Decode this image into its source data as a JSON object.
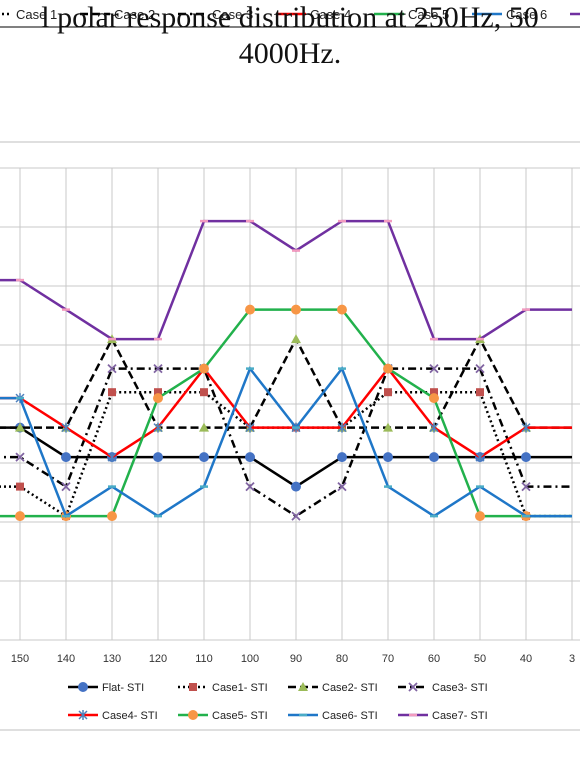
{
  "top_legend": [
    {
      "label": "Case 1",
      "color": "#000000",
      "dash": "2,3"
    },
    {
      "label": "Case 2",
      "color": "#000000",
      "dash": "8,4"
    },
    {
      "label": "Case 3",
      "color": "#000000",
      "dash": "8,4,2,4"
    },
    {
      "label": "Case 4",
      "color": "#ff0000",
      "dash": ""
    },
    {
      "label": "Case 5",
      "color": "#22b14c",
      "dash": ""
    },
    {
      "label": "Case 6",
      "color": "#1f77c8",
      "dash": ""
    },
    {
      "label": "",
      "color": "#7030a0",
      "dash": ""
    }
  ],
  "caption": {
    "line1": "l polar response distribution at 250Hz, 50",
    "line2": "4000Hz."
  },
  "chart_data": {
    "type": "line",
    "title": "",
    "xlabel": "",
    "ylabel": "",
    "x": [
      150,
      140,
      130,
      120,
      110,
      100,
      90,
      80,
      70,
      60,
      50,
      40
    ],
    "x_tick_labels": [
      "150",
      "140",
      "130",
      "120",
      "110",
      "100",
      "90",
      "80",
      "70",
      "60",
      "50",
      "40",
      "3"
    ],
    "ylim": [
      0,
      1.6
    ],
    "grid": true,
    "legend_position": "bottom",
    "series": [
      {
        "name": "Flat- STI",
        "color": "#000000",
        "dash": "",
        "marker": "circle",
        "marker_color": "#4472c4",
        "values": [
          0.72,
          0.62,
          0.62,
          0.62,
          0.62,
          0.62,
          0.52,
          0.62,
          0.62,
          0.62,
          0.62,
          0.62
        ]
      },
      {
        "name": "Case1- STI",
        "color": "#000000",
        "dash": "2,3",
        "marker": "square",
        "marker_color": "#c0504d",
        "values": [
          0.52,
          0.42,
          0.84,
          0.84,
          0.84,
          0.72,
          0.72,
          0.72,
          0.84,
          0.84,
          0.84,
          0.42
        ]
      },
      {
        "name": "Case2- STI",
        "color": "#000000",
        "dash": "8,4",
        "marker": "triangle",
        "marker_color": "#9bbb59",
        "values": [
          0.72,
          0.72,
          1.02,
          0.72,
          0.72,
          0.72,
          1.02,
          0.72,
          0.72,
          0.72,
          1.02,
          0.72
        ]
      },
      {
        "name": "Case3- STI",
        "color": "#000000",
        "dash": "8,4,2,4",
        "marker": "x",
        "marker_color": "#8064a2",
        "values": [
          0.62,
          0.52,
          0.92,
          0.92,
          0.92,
          0.52,
          0.42,
          0.52,
          0.92,
          0.92,
          0.92,
          0.52
        ]
      },
      {
        "name": "Case4- STI",
        "color": "#ff0000",
        "dash": "",
        "marker": "star",
        "marker_color": "#4f81bd",
        "values": [
          0.82,
          0.72,
          0.62,
          0.72,
          0.92,
          0.72,
          0.72,
          0.72,
          0.92,
          0.72,
          0.62,
          0.72
        ]
      },
      {
        "name": "Case5- STI",
        "color": "#22b14c",
        "dash": "",
        "marker": "circle",
        "marker_color": "#f79646",
        "values": [
          0.42,
          0.42,
          0.42,
          0.82,
          0.92,
          1.12,
          1.12,
          1.12,
          0.92,
          0.82,
          0.42,
          0.42
        ]
      },
      {
        "name": "Case6- STI",
        "color": "#1f77c8",
        "dash": "",
        "marker": "dash",
        "marker_color": "#4bacc6",
        "values": [
          0.82,
          0.42,
          0.52,
          0.42,
          0.52,
          0.92,
          0.72,
          0.92,
          0.52,
          0.42,
          0.52,
          0.42
        ]
      },
      {
        "name": "Case7- STI",
        "color": "#7030a0",
        "dash": "",
        "marker": "dash",
        "marker_color": "#f29bbf",
        "values": [
          1.22,
          1.12,
          1.02,
          1.02,
          1.42,
          1.42,
          1.32,
          1.42,
          1.42,
          1.02,
          1.02,
          1.12
        ]
      }
    ]
  }
}
